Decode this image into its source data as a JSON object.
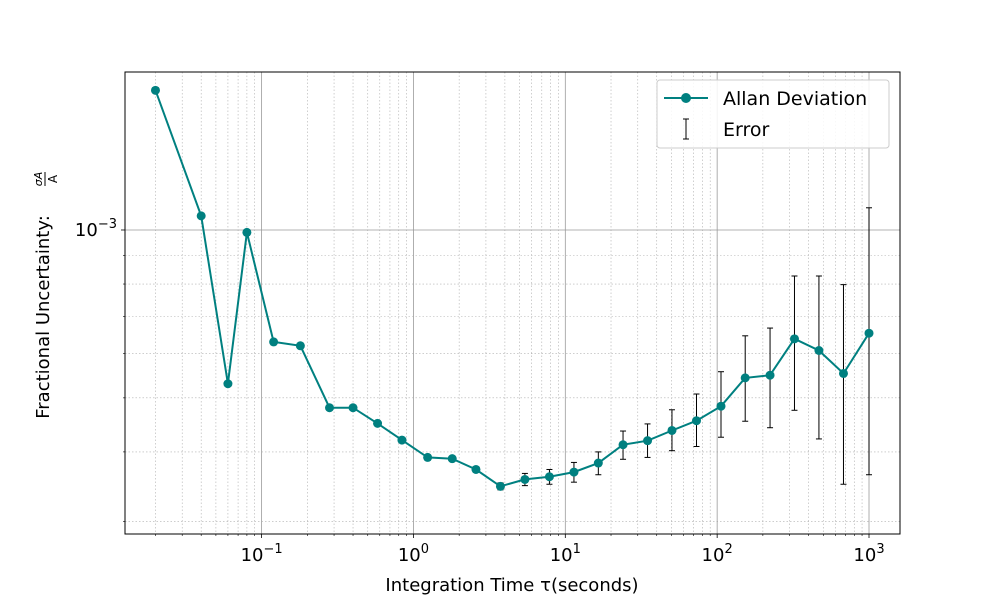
{
  "chart_data": {
    "type": "scatter",
    "title": "",
    "xlabel": "Integration Time τ(seconds)",
    "ylabel": "Fractional Uncertainty: σA/A",
    "ylabel_prefix": "Fractional Uncertainty: ",
    "ylabel_num": "σA",
    "ylabel_den": "A",
    "xscale": "log",
    "yscale": "log",
    "xlim": [
      0.0126,
      1600
    ],
    "ylim": [
      0.000285,
      0.00192
    ],
    "grid": true,
    "legend_position": "top-right",
    "x_ticks": [
      {
        "value": 0.1,
        "mantissa": "10",
        "exponent": "−1"
      },
      {
        "value": 1,
        "mantissa": "10",
        "exponent": "0"
      },
      {
        "value": 10,
        "mantissa": "10",
        "exponent": "1"
      },
      {
        "value": 100,
        "mantissa": "10",
        "exponent": "2"
      },
      {
        "value": 1000,
        "mantissa": "10",
        "exponent": "3"
      }
    ],
    "y_ticks": [
      {
        "value": 0.001,
        "mantissa": "10",
        "exponent": "−3"
      }
    ],
    "series": [
      {
        "name": "Allan Deviation",
        "color": "#008080",
        "x": [
          0.02,
          0.04,
          0.06,
          0.08,
          0.12,
          0.18,
          0.28,
          0.4,
          0.58,
          0.84,
          1.24,
          1.8,
          2.58,
          3.74,
          5.42,
          7.86,
          11.4,
          16.5,
          24.0,
          34.8,
          50.4,
          73.1,
          106,
          153,
          223,
          323,
          468,
          679,
          1000
        ]
      },
      {
        "name": "Allan Deviation",
        "values": [
          0.00178,
          0.00106,
          0.00053,
          0.00099,
          0.00063,
          0.00062,
          0.00048,
          0.00048,
          0.00045,
          0.00042,
          0.000391,
          0.000389,
          0.000372,
          0.000347,
          0.000357,
          0.000361,
          0.000368,
          0.000382,
          0.000412,
          0.000419,
          0.000437,
          0.000455,
          0.000483,
          0.000543,
          0.000549,
          0.000638,
          0.000608,
          0.000553,
          0.000653
        ]
      },
      {
        "name": "Error",
        "color": "#000000",
        "err_low": [
          0,
          0,
          0,
          0,
          0,
          0,
          0,
          0,
          0,
          0,
          0,
          0,
          0,
          5e-06,
          9e-06,
          1.1e-05,
          1.5e-05,
          1.8e-05,
          2.4e-05,
          2.8e-05,
          3.5e-05,
          4.6e-05,
          5.8e-05,
          8.9e-05,
          0.000107,
          0.000163,
          0.000186,
          0.000203,
          0.000289
        ],
        "err_high": [
          0,
          0,
          0,
          0,
          0,
          0,
          0,
          0,
          0,
          0,
          0,
          0,
          0,
          5e-06,
          9e-06,
          1.1e-05,
          1.5e-05,
          1.8e-05,
          2.4e-05,
          3e-05,
          3.9e-05,
          5.3e-05,
          7.4e-05,
          0.000103,
          0.000118,
          0.000189,
          0.000219,
          0.000245,
          0.000443
        ]
      }
    ]
  }
}
